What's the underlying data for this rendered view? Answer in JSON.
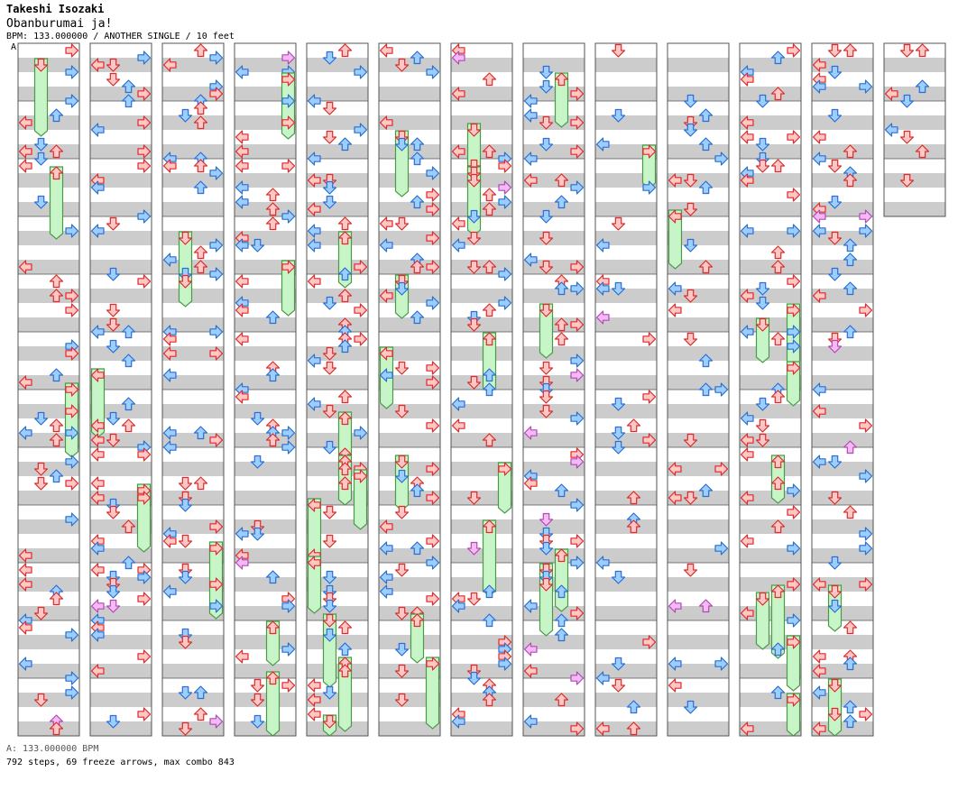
{
  "song": {
    "artist": "Takeshi Isozaki",
    "title": "Obanburumai ja!",
    "meta": "BPM: 133.000000 / ANOTHER SINGLE / 10 feet",
    "marker": "A"
  },
  "footer": {
    "bpm": "A: 133.000000 BPM",
    "stats": "792 steps, 69 freeze arrows, max combo 843"
  },
  "colors": {
    "quarter_fill": "#ffc6c6",
    "quarter_stroke": "#dd2b2b",
    "eighth_fill": "#9ccfff",
    "eighth_stroke": "#2a6fd1",
    "sixteenth_fill": "#f4baf4",
    "sixteenth_stroke": "#b349b3",
    "freeze_fill": "#c8f5c8",
    "freeze_stroke": "#4a9a4a",
    "stripe": "#cccccc",
    "border": "#555555"
  },
  "chart": {
    "columns": 13,
    "measures_per_column": 12,
    "lanes": [
      "left",
      "down",
      "up",
      "right"
    ],
    "arrow_icons": {
      "left": "arrow-left-icon",
      "down": "arrow-down-icon",
      "up": "arrow-up-icon",
      "right": "arrow-right-icon"
    }
  }
}
